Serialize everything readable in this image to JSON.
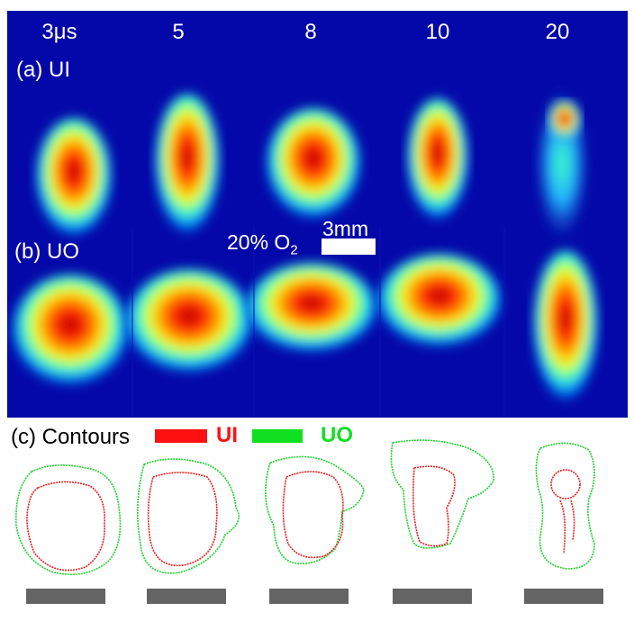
{
  "time_labels": [
    "3μs",
    "5",
    "8",
    "10",
    "20"
  ],
  "rows": {
    "a_label": "(a) UI",
    "b_label": "(b) UO"
  },
  "annotation": {
    "concentration": "20% O",
    "concentration_subscript": "2",
    "scale_label": "3mm"
  },
  "contours": {
    "title": "(c) Contours",
    "legend": [
      {
        "name": "UI",
        "color": "#ff1010"
      },
      {
        "name": "UO",
        "color": "#10e020"
      }
    ]
  },
  "colors": {
    "background": "#0508a8",
    "ui_contour": "#e02020",
    "uo_contour": "#20d030",
    "scalebar": "#646464"
  }
}
